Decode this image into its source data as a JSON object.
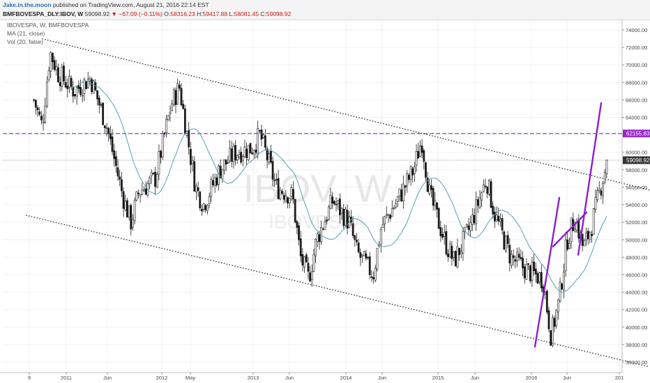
{
  "header": {
    "author": "Jake.in.the.moon",
    "published_text": "published on TradingView.com, August 21, 2016 22:14 EST",
    "symbol": "BMFBOVESPA_DLY:IBOV, W",
    "last": "59098.92",
    "change": "▼ −67.09 (−0.11%)",
    "open_label": "O:",
    "open": "58316.23",
    "high_label": "H:",
    "high": "59417.88",
    "low_label": "L:",
    "low": "58081.45",
    "close_label": "C:",
    "close": "59098.92"
  },
  "legend": {
    "title": "IBOVESPA, W, BMFBOVESPA",
    "ma": "MA (21, close)",
    "vol": "Vol (20, false)"
  },
  "watermark": {
    "big": "IBOV, W",
    "small": "IBOVESPA"
  },
  "colors": {
    "price_line": "#808080",
    "resistance": "#9a28c8",
    "ma": "#5a9fb0",
    "trend_purple": "#8a1fd0",
    "candle": "#1a1a1a"
  },
  "price_tags": {
    "resistance": "62155.83",
    "last": "59098.92"
  },
  "chart_data": {
    "type": "candlestick",
    "y_axis": {
      "ticks": [
        "74000.00",
        "72000.00",
        "70000.00",
        "68000.00",
        "66000.00",
        "64000.00",
        "62000.00",
        "60000.00",
        "58000.00",
        "56000.00",
        "54000.00",
        "52000.00",
        "50000.00",
        "48000.00",
        "46000.00",
        "44000.00",
        "42000.00",
        "40000.00",
        "38000.00",
        "36000.00"
      ],
      "ylim": [
        35000,
        75000
      ]
    },
    "x_axis": {
      "tick_labels": [
        "9",
        "2011",
        "Jun",
        "2012",
        "May",
        "2013",
        "Jun",
        "2014",
        "Jun",
        "2015",
        "Jun",
        "2016",
        "Jun",
        "201"
      ]
    },
    "price_path": [
      [
        "2010-09",
        66000
      ],
      [
        "2010-10",
        63000
      ],
      [
        "2010-11",
        71500
      ],
      [
        "2010-12",
        69000
      ],
      [
        "2011-02",
        67000
      ],
      [
        "2011-04",
        68500
      ],
      [
        "2011-06",
        63000
      ],
      [
        "2011-08",
        55000
      ],
      [
        "2011-09",
        52000
      ],
      [
        "2011-10",
        55500
      ],
      [
        "2011-12",
        57000
      ],
      [
        "2012-02",
        65500
      ],
      [
        "2012-03",
        67500
      ],
      [
        "2012-05",
        56000
      ],
      [
        "2012-06",
        54000
      ],
      [
        "2012-08",
        58000
      ],
      [
        "2012-10",
        60000
      ],
      [
        "2012-12",
        60500
      ],
      [
        "2013-01",
        62000
      ],
      [
        "2013-03",
        56000
      ],
      [
        "2013-05",
        55000
      ],
      [
        "2013-06",
        48000
      ],
      [
        "2013-07",
        45500
      ],
      [
        "2013-08",
        50000
      ],
      [
        "2013-10",
        54500
      ],
      [
        "2013-12",
        52000
      ],
      [
        "2014-01",
        48500
      ],
      [
        "2014-03",
        46000
      ],
      [
        "2014-04",
        51500
      ],
      [
        "2014-06",
        54500
      ],
      [
        "2014-08",
        58000
      ],
      [
        "2014-09",
        61500
      ],
      [
        "2014-10",
        55000
      ],
      [
        "2014-12",
        49500
      ],
      [
        "2015-01",
        47500
      ],
      [
        "2015-03",
        51500
      ],
      [
        "2015-05",
        57000
      ],
      [
        "2015-06",
        53000
      ],
      [
        "2015-08",
        48000
      ],
      [
        "2015-10",
        46500
      ],
      [
        "2015-12",
        45500
      ],
      [
        "2016-01",
        39000
      ],
      [
        "2016-02",
        43000
      ],
      [
        "2016-03",
        50000
      ],
      [
        "2016-04",
        52500
      ],
      [
        "2016-05",
        49000
      ],
      [
        "2016-06",
        51500
      ],
      [
        "2016-07",
        55500
      ],
      [
        "2016-08",
        59099
      ]
    ],
    "lines": {
      "upper_channel": [
        [
          "2010-10",
          73000
        ],
        [
          "2017-02",
          55500
        ]
      ],
      "lower_channel": [
        [
          "2010-08",
          52800
        ],
        [
          "2017-01",
          35500
        ]
      ],
      "resistance": 62155.83,
      "last_price": 59098.92
    }
  }
}
